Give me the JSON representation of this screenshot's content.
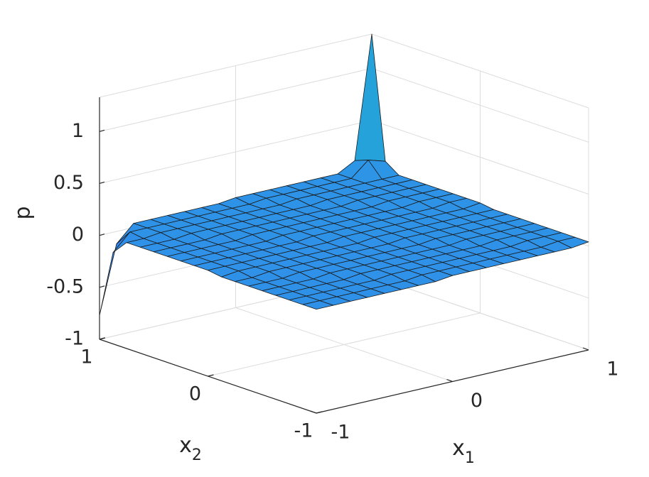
{
  "chart_data": {
    "type": "surface",
    "xlabel": {
      "text": "x",
      "subscript": "1"
    },
    "ylabel": {
      "text": "x",
      "subscript": "2"
    },
    "zlabel": "p",
    "x": [
      -1,
      -0.875,
      -0.75,
      -0.625,
      -0.5,
      -0.375,
      -0.25,
      -0.125,
      0,
      0.125,
      0.25,
      0.375,
      0.5,
      0.625,
      0.75,
      0.875,
      1
    ],
    "y": [
      -1,
      -0.875,
      -0.75,
      -0.625,
      -0.5,
      -0.375,
      -0.25,
      -0.125,
      0,
      0.125,
      0.25,
      0.375,
      0.5,
      0.625,
      0.75,
      0.875,
      1
    ],
    "z": [
      [
        0,
        0,
        0,
        0,
        0,
        0,
        0,
        0,
        0.02,
        0.02,
        0.02,
        0.02,
        0.02,
        0.02,
        0.02,
        0.02,
        0.04
      ],
      [
        0,
        0,
        0,
        0,
        0,
        0,
        0,
        0.02,
        0.02,
        0.02,
        0.02,
        0.02,
        0.02,
        0.02,
        0.02,
        0.04,
        0.04
      ],
      [
        0,
        0,
        0,
        0,
        0,
        0,
        0.02,
        0.02,
        0.02,
        0.02,
        0.02,
        0.02,
        0.02,
        0.02,
        0.04,
        0.04,
        0.04
      ],
      [
        0,
        0,
        0,
        0,
        0,
        0.02,
        0.02,
        0.02,
        0.02,
        0.02,
        0.02,
        0.02,
        0.02,
        0.04,
        0.04,
        0.04,
        0.04
      ],
      [
        0,
        0,
        0,
        0,
        0.02,
        0.02,
        0.02,
        0.02,
        0.02,
        0.02,
        0.02,
        0.02,
        0.04,
        0.04,
        0.04,
        0.04,
        0.04
      ],
      [
        0,
        0,
        0,
        0.02,
        0.02,
        0.02,
        0.02,
        0.02,
        0.02,
        0.02,
        0.02,
        0.04,
        0.04,
        0.04,
        0.04,
        0.04,
        0.04
      ],
      [
        0,
        0,
        0.02,
        0.02,
        0.02,
        0.02,
        0.02,
        0.02,
        0.02,
        0.02,
        0.04,
        0.04,
        0.04,
        0.04,
        0.04,
        0.04,
        0.04
      ],
      [
        0,
        0.02,
        0.02,
        0.02,
        0.02,
        0.02,
        0.02,
        0.02,
        0.02,
        0.04,
        0.04,
        0.04,
        0.04,
        0.04,
        0.04,
        0.04,
        0.04
      ],
      [
        0.02,
        0.02,
        0.02,
        0.02,
        0.02,
        0.02,
        0.02,
        0.02,
        0.04,
        0.04,
        0.04,
        0.04,
        0.04,
        0.04,
        0.04,
        0.04,
        0.06
      ],
      [
        0.02,
        0.02,
        0.02,
        0.02,
        0.02,
        0.02,
        0.02,
        0.04,
        0.04,
        0.04,
        0.04,
        0.04,
        0.04,
        0.04,
        0.04,
        0.06,
        0.06
      ],
      [
        0.02,
        0.02,
        0.02,
        0.02,
        0.02,
        0.02,
        0.04,
        0.04,
        0.04,
        0.04,
        0.04,
        0.04,
        0.04,
        0.04,
        0.06,
        0.06,
        0.06
      ],
      [
        0.02,
        0.02,
        0.02,
        0.02,
        0.02,
        0.04,
        0.04,
        0.04,
        0.04,
        0.04,
        0.04,
        0.04,
        0.04,
        0.06,
        0.06,
        0.06,
        0.06
      ],
      [
        0.02,
        0.02,
        0.02,
        0.02,
        0.04,
        0.04,
        0.04,
        0.04,
        0.04,
        0.04,
        0.04,
        0.04,
        0.06,
        0.06,
        0.06,
        0.06,
        0.06
      ],
      [
        0.02,
        0.02,
        0.02,
        0.04,
        0.04,
        0.04,
        0.04,
        0.04,
        0.04,
        0.04,
        0.04,
        0.06,
        0.06,
        0.06,
        0.06,
        0.06,
        0.06
      ],
      [
        0.02,
        0.02,
        0.04,
        0.04,
        0.04,
        0.04,
        0.04,
        0.04,
        0.04,
        0.04,
        0.06,
        0.06,
        0.06,
        0.06,
        0.06,
        0.06,
        0.06
      ],
      [
        -0.12,
        0.04,
        0.04,
        0.04,
        0.04,
        0.04,
        0.04,
        0.04,
        0.04,
        0.06,
        0.06,
        0.06,
        0.06,
        0.06,
        0.06,
        0.2,
        0.15
      ],
      [
        -0.77,
        -0.12,
        0.04,
        0.04,
        0.04,
        0.04,
        0.04,
        0.04,
        0.06,
        0.06,
        0.06,
        0.06,
        0.06,
        0.06,
        0.06,
        0.15,
        1.33
      ]
    ],
    "xlim": [
      -1,
      1
    ],
    "xticks": [
      -1,
      0,
      1
    ],
    "ylim": [
      -1,
      1
    ],
    "yticks": [
      -1,
      0,
      1
    ],
    "zlim": [
      -1,
      1.33
    ],
    "zticks": [
      -1,
      -0.5,
      0,
      0.5,
      1
    ],
    "grid": true,
    "colormap": [
      "#3d6cf6",
      "#2a9de2",
      "#13bdb6"
    ]
  }
}
